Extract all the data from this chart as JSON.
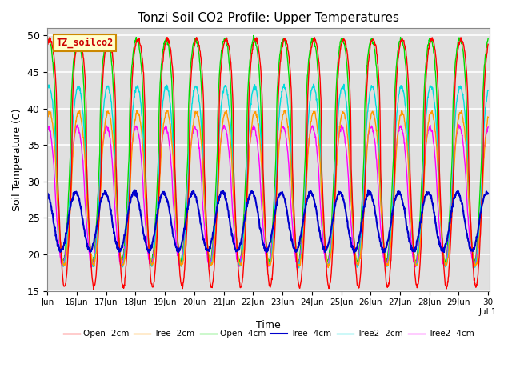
{
  "title": "Tonzi Soil CO2 Profile: Upper Temperatures",
  "xlabel": "Time",
  "ylabel": "Soil Temperature (C)",
  "ylim": [
    15,
    51
  ],
  "yticks": [
    15,
    20,
    25,
    30,
    35,
    40,
    45,
    50
  ],
  "annotation": "TZ_soilco2",
  "legend_labels": [
    "Open -2cm",
    "Tree -2cm",
    "Open -4cm",
    "Tree -4cm",
    "Tree2 -2cm",
    "Tree2 -4cm"
  ],
  "line_colors": [
    "#FF0000",
    "#FF9900",
    "#00DD00",
    "#0000CC",
    "#00DDDD",
    "#FF00FF"
  ],
  "xtick_labels": [
    "Jun",
    "16Jun",
    "17Jun",
    "18Jun",
    "19Jun",
    "20Jun",
    "21Jun",
    "22Jun",
    "23Jun",
    "24Jun",
    "25Jun",
    "26Jun",
    "27Jun",
    "28Jun",
    "29Jun",
    "30",
    "Jul 1"
  ],
  "background_color": "#ffffff",
  "plot_bg_color": "#e0e0e0",
  "grid_color": "#ffffff",
  "n_days": 15,
  "points_per_day": 96
}
